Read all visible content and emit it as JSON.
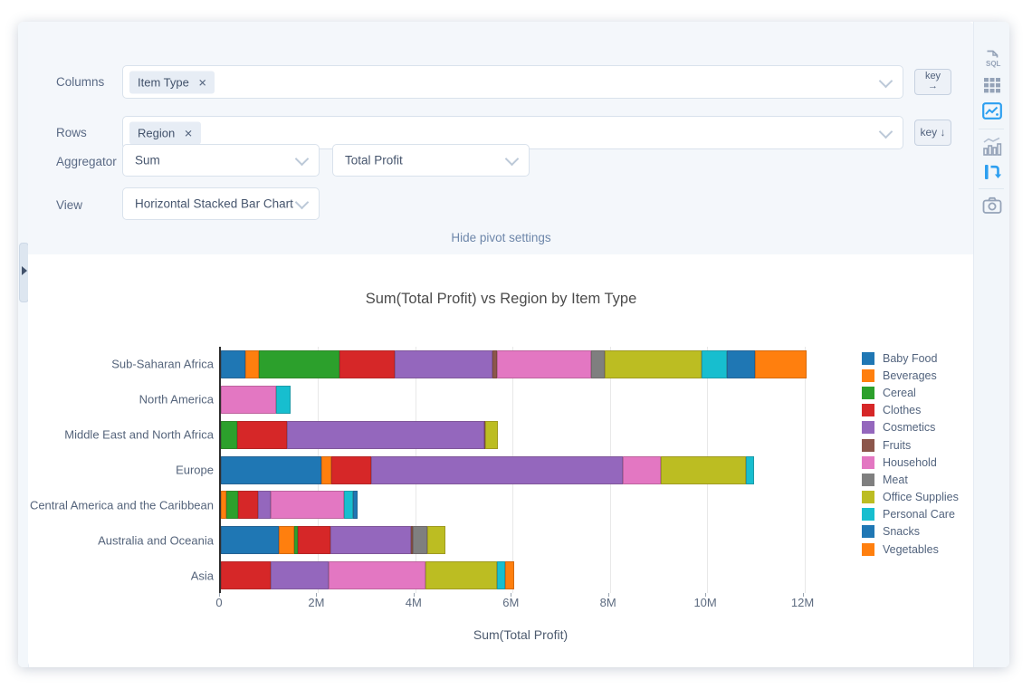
{
  "settings": {
    "columns_label": "Columns",
    "columns_tag": "Item Type",
    "rows_label": "Rows",
    "rows_tag": "Region",
    "tag_remove_glyph": "✕",
    "key_columns_label": "key",
    "key_columns_arrow": "→",
    "key_rows_label": "key ↓",
    "aggregator_label": "Aggregator",
    "aggregator_value": "Sum",
    "aggregator_field_value": "Total Profit",
    "view_label": "View",
    "view_value": "Horizontal Stacked Bar Chart",
    "hide_link": "Hide pivot settings"
  },
  "sidebar": {
    "icons": [
      "export-sql-icon",
      "table-icon",
      "chart-image-icon",
      "bar-chart-icon",
      "pivot-icon",
      "camera-icon"
    ],
    "sql_text": "SQL",
    "active_color": "#2d9ff0",
    "inactive_color": "#95a3b8"
  },
  "chart_data": {
    "type": "bar",
    "orientation": "horizontal",
    "stacked": true,
    "title": "Sum(Total Profit) vs Region by Item Type",
    "xlabel": "Sum(Total Profit)",
    "units": "millions",
    "xlim": [
      0,
      12.4
    ],
    "xticks": [
      0,
      2,
      4,
      6,
      8,
      10,
      12
    ],
    "xtick_labels": [
      "0",
      "2M",
      "4M",
      "6M",
      "8M",
      "10M",
      "12M"
    ],
    "grid": true,
    "legend_position": "right",
    "categories": [
      "Sub-Saharan Africa",
      "North America",
      "Middle East and North Africa",
      "Europe",
      "Central America and the Caribbean",
      "Australia and Oceania",
      "Asia"
    ],
    "series": [
      {
        "name": "Baby Food",
        "color": "#1f77b4",
        "values": [
          0.5,
          0,
          0,
          2.06,
          0,
          1.2,
          0
        ]
      },
      {
        "name": "Beverages",
        "color": "#ff7f0e",
        "values": [
          0.29,
          0,
          0,
          0.21,
          0.12,
          0.31,
          0
        ]
      },
      {
        "name": "Cereal",
        "color": "#2ca02c",
        "values": [
          1.65,
          0,
          0.34,
          0,
          0.23,
          0.07,
          0
        ]
      },
      {
        "name": "Clothes",
        "color": "#d62728",
        "values": [
          1.14,
          0,
          1.02,
          0.82,
          0.41,
          0.68,
          1.03
        ]
      },
      {
        "name": "Cosmetics",
        "color": "#9467bd",
        "values": [
          2.0,
          0,
          4.05,
          5.17,
          0.27,
          1.65,
          1.18
        ]
      },
      {
        "name": "Fruits",
        "color": "#8c564b",
        "values": [
          0.09,
          0,
          0.03,
          0,
          0,
          0.03,
          0
        ]
      },
      {
        "name": "Household",
        "color": "#e377c2",
        "values": [
          1.94,
          1.14,
          0,
          0.78,
          1.51,
          0,
          1.99
        ]
      },
      {
        "name": "Meat",
        "color": "#7f7f7f",
        "values": [
          0.28,
          0,
          0,
          0,
          0,
          0.3,
          0
        ]
      },
      {
        "name": "Office Supplies",
        "color": "#bcbd22",
        "values": [
          2.0,
          0,
          0.26,
          1.76,
          0,
          0.37,
          1.47
        ]
      },
      {
        "name": "Personal Care",
        "color": "#17becf",
        "values": [
          0.51,
          0.3,
          0,
          0.16,
          0.18,
          0,
          0.17
        ]
      },
      {
        "name": "Snacks",
        "color": "#1f77b4",
        "values": [
          0.59,
          0,
          0,
          0,
          0.09,
          0,
          0
        ]
      },
      {
        "name": "Vegetables",
        "color": "#ff7f0e",
        "values": [
          1.06,
          0,
          0,
          0,
          0,
          0,
          0.2
        ]
      }
    ]
  }
}
